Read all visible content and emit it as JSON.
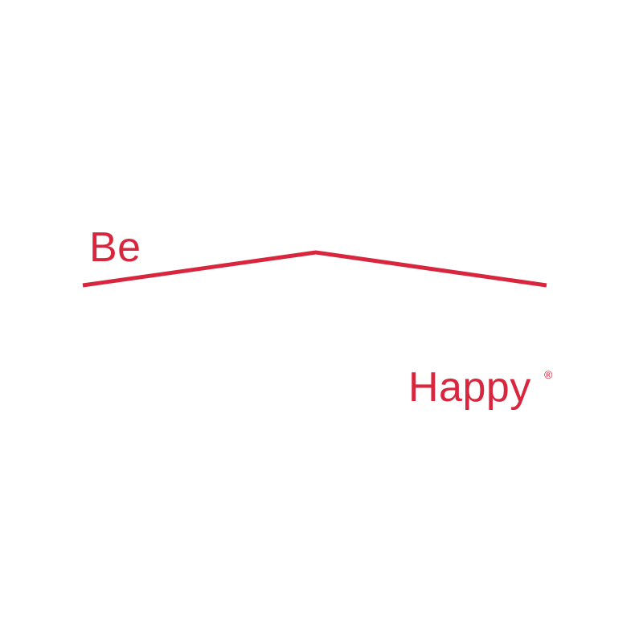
{
  "logo": {
    "word_top": "Be",
    "word_bottom": "Happy",
    "registered_mark": "®",
    "brand_color": "#d7263d"
  }
}
